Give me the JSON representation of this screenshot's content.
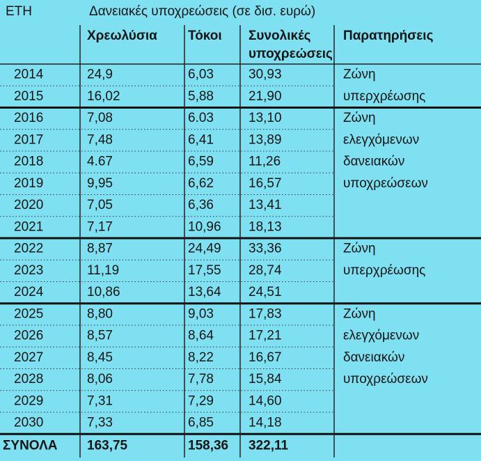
{
  "header": {
    "years_label": "ΕΤΗ",
    "title": "Δανειακές υποχρεώσεις (σε δισ. ευρώ)",
    "columns": [
      [
        "Χρεωλύσια"
      ],
      [
        "Τόκοι"
      ],
      [
        "Συνολικές",
        "υποχρεώσεις"
      ],
      [
        "Παρατηρήσεις"
      ]
    ]
  },
  "table": {
    "rows": [
      [
        "2014",
        "24,9",
        "6,03",
        "30,93",
        "Ζώνη"
      ],
      [
        "2015",
        "16,02",
        "5,88",
        "21,90",
        "υπερχρέωσης"
      ],
      [
        "2016",
        "7,08",
        "6.03",
        "13,10",
        "Ζώνη"
      ],
      [
        "2017",
        "7,48",
        "6,41",
        "13,89",
        "ελεγχόμενων"
      ],
      [
        "2018",
        "4.67",
        "6,59",
        "11,26",
        "δανειακών"
      ],
      [
        "2019",
        "9,95",
        "6,62",
        "16,57",
        "υποχρεώσεων"
      ],
      [
        "2020",
        "7,05",
        "6,36",
        "13,41",
        null
      ],
      [
        "2021",
        "7,17",
        "10,96",
        "18,13",
        null
      ],
      [
        "2022",
        "8,87",
        "24,49",
        "33,36",
        "Ζώνη"
      ],
      [
        "2023",
        "11,19",
        "17,55",
        "28,74",
        "υπερχρέωσης"
      ],
      [
        "2024",
        "10,86",
        "13,64",
        "24,51",
        null
      ],
      [
        "2025",
        "8,80",
        "9,03",
        "17,83",
        "Ζώνη"
      ],
      [
        "2026",
        "8,57",
        "8,64",
        "17,21",
        "ελεγχόμενων"
      ],
      [
        "2027",
        "8,45",
        "8,22",
        "16,67",
        "δανειακών"
      ],
      [
        "2028",
        "8,06",
        "7,78",
        "15,84",
        "υποχρεώσεων"
      ],
      [
        "2029",
        "7,31",
        "7,29",
        "14,60",
        null
      ],
      [
        "2030",
        "7,33",
        "6,85",
        "14,18",
        null
      ]
    ],
    "totals": [
      "ΣΥΝΟΛΑ",
      "163,75",
      "158,36",
      "322,11"
    ]
  }
}
